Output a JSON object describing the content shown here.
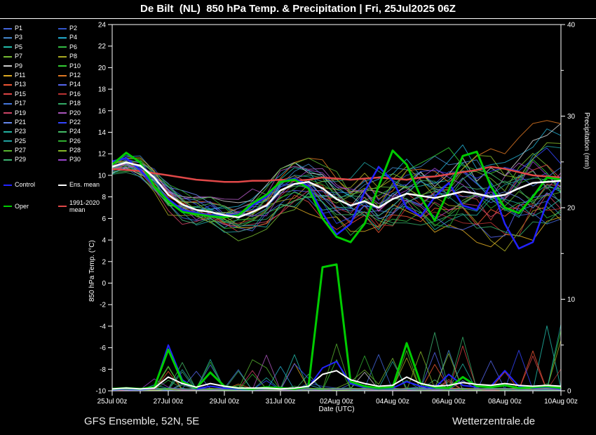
{
  "title": "De Bilt  (NL)  850 hPa Temp. & Precipitation | Fri, 25Jul2025 06Z",
  "footer": {
    "left": "GFS Ensemble, 52N, 5E",
    "right": "Wetterzentrale.de"
  },
  "legend": {
    "members": [
      {
        "label": "P1",
        "color": "#4466dd"
      },
      {
        "label": "P2",
        "color": "#3355cc"
      },
      {
        "label": "P3",
        "color": "#4488cc"
      },
      {
        "label": "P4",
        "color": "#22aacc"
      },
      {
        "label": "P5",
        "color": "#22bbaa"
      },
      {
        "label": "P6",
        "color": "#33bb44"
      },
      {
        "label": "P7",
        "color": "#77bb33"
      },
      {
        "label": "P8",
        "color": "#aaaa22"
      },
      {
        "label": "P9",
        "color": "#cccccc"
      },
      {
        "label": "P10",
        "color": "#33cc33"
      },
      {
        "label": "P11",
        "color": "#ddaa22"
      },
      {
        "label": "P12",
        "color": "#dd7722"
      },
      {
        "label": "P13",
        "color": "#ee5533"
      },
      {
        "label": "P14",
        "color": "#5566ee"
      },
      {
        "label": "P15",
        "color": "#dd4444"
      },
      {
        "label": "P16",
        "color": "#bb3333"
      },
      {
        "label": "P17",
        "color": "#4477dd"
      },
      {
        "label": "P18",
        "color": "#33aa66"
      },
      {
        "label": "P19",
        "color": "#cc4466"
      },
      {
        "label": "P20",
        "color": "#aa55bb"
      },
      {
        "label": "P21",
        "color": "#6688ee"
      },
      {
        "label": "P22",
        "color": "#3344ff"
      },
      {
        "label": "P23",
        "color": "#22b0a0"
      },
      {
        "label": "P24",
        "color": "#44bb66"
      },
      {
        "label": "P25",
        "color": "#20a0a0"
      },
      {
        "label": "P26",
        "color": "#2fae2f"
      },
      {
        "label": "P27",
        "color": "#58b430"
      },
      {
        "label": "P28",
        "color": "#86b828"
      },
      {
        "label": "P29",
        "color": "#3cb371"
      },
      {
        "label": "P30",
        "color": "#9944cc"
      }
    ],
    "control": {
      "label": "Control",
      "color": "#2222ff"
    },
    "ens_mean": {
      "label": "Ens. mean",
      "color": "#ffffff"
    },
    "oper": {
      "label": "Oper",
      "color": "#00cc00"
    },
    "clim": {
      "label": "1991-2020 mean",
      "color": "#e04848"
    }
  },
  "chart_data": {
    "type": "line",
    "title": "De Bilt (NL) 850 hPa Temp. & Precipitation | Fri, 25Jul2025 06Z",
    "xlabel": "Date (UTC)",
    "x_days": {
      "start_label": "25Jul 00z",
      "step_days": 0.5,
      "count": 33,
      "unit": "days since 25Jul2025 00z"
    },
    "x_ticks": {
      "days": [
        0,
        2,
        4,
        6,
        8,
        10,
        12,
        14,
        16
      ],
      "labels": [
        "25Jul 00z",
        "27Jul 00z",
        "29Jul 00z",
        "31Jul 00z",
        "02Aug 00z",
        "04Aug 00z",
        "06Aug 00z",
        "08Aug 00z",
        "10Aug 00z"
      ]
    },
    "temp_axis": {
      "label": "850 hPa Temp. (°C)",
      "min": -10,
      "max": 24,
      "tick_step": 2
    },
    "precip_axis": {
      "label": "Precipitation (mm)",
      "min": 0,
      "max": 40,
      "ticks": [
        0,
        10,
        20,
        30,
        40
      ]
    },
    "grid": false,
    "legend_position": "left",
    "series": {
      "clim_temp": [
        10.6,
        10.5,
        10.4,
        10.2,
        10.0,
        9.8,
        9.6,
        9.5,
        9.4,
        9.4,
        9.5,
        9.5,
        9.6,
        9.5,
        9.6,
        9.8,
        9.7,
        9.6,
        9.7,
        9.8,
        9.7,
        9.6,
        9.8,
        9.9,
        10.1,
        10.3,
        10.5,
        10.8,
        10.6,
        10.3,
        10.0,
        9.9,
        9.8
      ],
      "ens_mean_temp": [
        10.8,
        11.2,
        10.9,
        9.8,
        8.2,
        7.3,
        6.8,
        6.6,
        6.3,
        6.1,
        6.6,
        7.2,
        8.6,
        9.2,
        9.4,
        8.8,
        7.8,
        7.2,
        7.6,
        7.0,
        7.8,
        8.3,
        8.1,
        7.9,
        8.2,
        8.5,
        8.3,
        8.0,
        8.2,
        8.8,
        9.3,
        9.4,
        9.5
      ],
      "control_temp": [
        11.3,
        11.6,
        10.5,
        9.0,
        7.8,
        6.8,
        6.5,
        6.3,
        6.2,
        6.4,
        7.2,
        8.0,
        9.4,
        9.7,
        9.0,
        6.5,
        4.5,
        5.5,
        8.5,
        10.8,
        9.5,
        7.0,
        6.2,
        8.0,
        9.3,
        7.2,
        6.8,
        9.2,
        5.5,
        3.2,
        3.8,
        7.5,
        9.8
      ],
      "oper_temp": [
        11.0,
        12.1,
        11.2,
        9.0,
        7.6,
        6.6,
        6.4,
        6.2,
        6.1,
        6.3,
        7.4,
        8.2,
        9.4,
        9.6,
        8.8,
        6.0,
        4.3,
        3.8,
        5.5,
        9.0,
        12.3,
        11.0,
        8.0,
        5.8,
        8.6,
        11.8,
        12.2,
        9.0,
        7.0,
        6.5,
        8.0,
        9.8,
        9.6
      ],
      "oper_precip": [
        0.2,
        0.3,
        0.2,
        0.4,
        4.5,
        1.0,
        0.3,
        2.0,
        0.5,
        0.3,
        0.2,
        0.4,
        0.3,
        0.2,
        0.5,
        13.5,
        13.8,
        1.0,
        0.5,
        0.3,
        0.4,
        5.2,
        0.8,
        0.4,
        0.3,
        1.5,
        0.5,
        0.4,
        0.6,
        0.3,
        0.4,
        0.5,
        0.3
      ],
      "ens_mean_precip": [
        0.2,
        0.3,
        0.2,
        0.3,
        1.5,
        0.8,
        0.4,
        0.8,
        0.5,
        0.3,
        0.3,
        0.3,
        0.2,
        0.3,
        0.5,
        1.8,
        2.2,
        1.2,
        0.8,
        0.5,
        0.6,
        1.5,
        0.8,
        0.5,
        0.6,
        0.9,
        0.7,
        0.6,
        0.8,
        0.6,
        0.5,
        0.6,
        0.5
      ],
      "control_precip": [
        0.1,
        0.2,
        0.1,
        0.3,
        5.0,
        1.2,
        0.2,
        0.5,
        0.3,
        0.2,
        0.2,
        0.3,
        0.2,
        0.2,
        0.4,
        2.5,
        3.2,
        0.8,
        0.4,
        0.2,
        0.3,
        1.0,
        0.5,
        0.3,
        1.8,
        0.6,
        0.4,
        0.5,
        2.2,
        0.5,
        0.3,
        0.4,
        0.2
      ]
    },
    "members": {
      "count": 30,
      "seed": 13,
      "note": "30 ensemble member traces scatter around ens_mean_temp within the envelope below",
      "temp_envelope_min": [
        9.8,
        9.6,
        9.0,
        7.6,
        6.2,
        5.4,
        5.0,
        4.6,
        4.0,
        3.8,
        4.2,
        5.0,
        6.2,
        6.6,
        6.0,
        4.8,
        3.6,
        3.2,
        3.4,
        3.6,
        3.4,
        3.2,
        3.0,
        3.0,
        3.2,
        3.0,
        3.0,
        2.8,
        2.6,
        2.6,
        2.8,
        3.0,
        3.2
      ],
      "temp_envelope_max": [
        12.2,
        12.4,
        11.8,
        10.6,
        9.4,
        8.6,
        8.2,
        8.0,
        7.8,
        8.0,
        8.8,
        9.6,
        10.6,
        11.2,
        11.6,
        11.8,
        12.0,
        12.4,
        12.8,
        13.2,
        13.8,
        14.4,
        15.0,
        15.4,
        16.0,
        16.6,
        17.2,
        17.0,
        16.8,
        17.0,
        16.6,
        16.8,
        17.2
      ]
    }
  }
}
